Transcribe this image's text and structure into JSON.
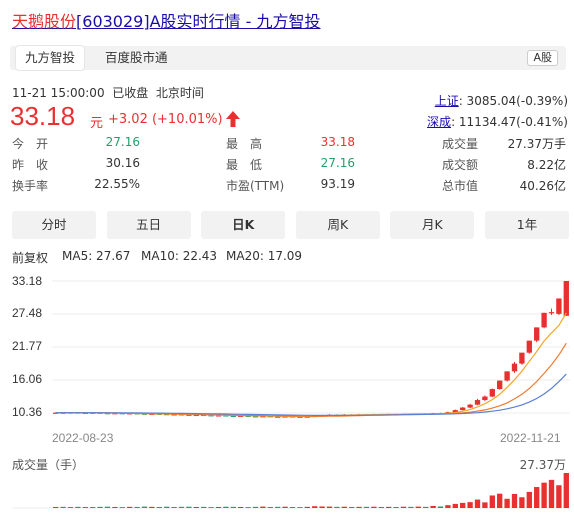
{
  "page": {
    "title_name": "天鹅股份",
    "title_code": "[603029]",
    "title_rest": "A股实时行情 - 九方智投"
  },
  "tabs": [
    {
      "label": "九方智投",
      "active": true
    },
    {
      "label": "百度股市通",
      "active": false
    }
  ],
  "market_badge": "A股",
  "quote": {
    "timestamp": "11-21 15:00:00",
    "status": "已收盘",
    "timezone": "北京时间",
    "price": "33.18",
    "unit": "元",
    "change": "+3.02 (+10.01%)"
  },
  "indices": [
    {
      "name": "上证",
      "value": ": 3085.04(-0.39%)"
    },
    {
      "name": "深成",
      "value": ": 11134.47(-0.41%)"
    }
  ],
  "stats": [
    {
      "label": "今　开",
      "value": "27.16",
      "color": "green"
    },
    {
      "label": "最　高",
      "value": "33.18",
      "color": "red"
    },
    {
      "label": "成交量",
      "value": "27.37万手",
      "color": "normal"
    },
    {
      "label": "昨　收",
      "value": "30.16",
      "color": "normal"
    },
    {
      "label": "最　低",
      "value": "27.16",
      "color": "green"
    },
    {
      "label": "成交额",
      "value": "8.22亿",
      "color": "normal"
    },
    {
      "label": "换手率",
      "value": "22.55%",
      "color": "normal"
    },
    {
      "label": "市盈(TTM)",
      "value": "93.19",
      "color": "normal"
    },
    {
      "label": "总市值",
      "value": "40.26亿",
      "color": "normal"
    }
  ],
  "periods": [
    {
      "label": "分时",
      "active": false
    },
    {
      "label": "五日",
      "active": false
    },
    {
      "label": "日K",
      "active": true
    },
    {
      "label": "周K",
      "active": false
    },
    {
      "label": "月K",
      "active": false
    },
    {
      "label": "1年",
      "active": false
    }
  ],
  "colors": {
    "up": "#e93030",
    "down": "#22a06b",
    "ma5": "#f5a623",
    "ma10": "#f07a32",
    "ma20": "#5b7fd6"
  },
  "chart_data": {
    "type": "candlestick",
    "adjust_label": "前复权",
    "ma_legend": [
      {
        "label": "MA5: 27.67",
        "color": "#f5a623"
      },
      {
        "label": "MA10: 22.43",
        "color": "#f07a32"
      },
      {
        "label": "MA20: 17.09",
        "color": "#5b7fd6"
      }
    ],
    "y_ticks": [
      "33.18",
      "27.48",
      "21.77",
      "16.06",
      "10.36"
    ],
    "y_tick_values": [
      33.18,
      27.48,
      21.77,
      16.06,
      10.36
    ],
    "x_labels": [
      "2022-08-23",
      "2022-11-21"
    ],
    "candles": [
      [
        10.4,
        10.42,
        10.3,
        10.48
      ],
      [
        10.42,
        10.38,
        10.32,
        10.5
      ],
      [
        10.38,
        10.45,
        10.33,
        10.52
      ],
      [
        10.45,
        10.4,
        10.35,
        10.5
      ],
      [
        10.4,
        10.36,
        10.3,
        10.45
      ],
      [
        10.36,
        10.42,
        10.32,
        10.48
      ],
      [
        10.42,
        10.35,
        10.28,
        10.46
      ],
      [
        10.35,
        10.3,
        10.24,
        10.4
      ],
      [
        10.3,
        10.34,
        10.26,
        10.4
      ],
      [
        10.34,
        10.28,
        10.22,
        10.38
      ],
      [
        10.28,
        10.32,
        10.24,
        10.38
      ],
      [
        10.32,
        10.25,
        10.18,
        10.36
      ],
      [
        10.25,
        10.2,
        10.12,
        10.3
      ],
      [
        10.2,
        10.24,
        10.14,
        10.3
      ],
      [
        10.24,
        10.18,
        10.1,
        10.28
      ],
      [
        10.18,
        10.1,
        10.02,
        10.22
      ],
      [
        10.1,
        10.14,
        10.04,
        10.2
      ],
      [
        10.14,
        10.06,
        9.98,
        10.18
      ],
      [
        10.06,
        10.0,
        9.92,
        10.1
      ],
      [
        10.0,
        10.04,
        9.94,
        10.1
      ],
      [
        10.04,
        9.98,
        9.9,
        10.08
      ],
      [
        9.98,
        9.92,
        9.84,
        10.02
      ],
      [
        9.92,
        9.96,
        9.86,
        10.02
      ],
      [
        9.96,
        9.88,
        9.8,
        10.0
      ],
      [
        9.88,
        9.84,
        9.76,
        9.94
      ],
      [
        9.84,
        9.88,
        9.78,
        9.94
      ],
      [
        9.88,
        9.8,
        9.72,
        9.92
      ],
      [
        9.8,
        9.76,
        9.68,
        9.86
      ],
      [
        9.76,
        9.82,
        9.7,
        9.88
      ],
      [
        9.82,
        9.74,
        9.66,
        9.86
      ],
      [
        9.74,
        9.7,
        9.62,
        9.8
      ],
      [
        9.7,
        9.78,
        9.64,
        9.84
      ],
      [
        9.78,
        9.72,
        9.64,
        9.82
      ],
      [
        9.72,
        9.66,
        9.58,
        9.76
      ],
      [
        9.66,
        9.74,
        9.6,
        9.8
      ],
      [
        9.74,
        9.86,
        9.7,
        9.92
      ],
      [
        9.86,
        9.94,
        9.8,
        10.02
      ],
      [
        9.94,
        10.06,
        9.88,
        10.14
      ],
      [
        10.06,
        10.0,
        9.94,
        10.12
      ],
      [
        10.0,
        10.1,
        9.96,
        10.18
      ],
      [
        10.1,
        10.04,
        9.98,
        10.16
      ],
      [
        10.04,
        10.12,
        10.0,
        10.2
      ],
      [
        10.12,
        10.08,
        10.02,
        10.18
      ],
      [
        10.08,
        10.16,
        10.04,
        10.22
      ],
      [
        10.16,
        10.1,
        10.04,
        10.2
      ],
      [
        10.1,
        10.18,
        10.06,
        10.24
      ],
      [
        10.18,
        10.14,
        10.08,
        10.24
      ],
      [
        10.14,
        10.22,
        10.1,
        10.28
      ],
      [
        10.22,
        10.16,
        10.1,
        10.26
      ],
      [
        10.16,
        10.24,
        10.12,
        10.3
      ],
      [
        10.24,
        10.2,
        10.14,
        10.3
      ],
      [
        10.2,
        10.32,
        10.16,
        10.38
      ],
      [
        10.32,
        10.28,
        10.2,
        10.4
      ],
      [
        10.28,
        10.5,
        10.24,
        10.6
      ],
      [
        10.5,
        10.86,
        10.44,
        10.96
      ],
      [
        10.86,
        11.3,
        10.8,
        11.4
      ],
      [
        11.3,
        11.8,
        11.2,
        11.96
      ],
      [
        11.8,
        12.6,
        11.7,
        12.8
      ],
      [
        12.6,
        13.2,
        12.4,
        13.4
      ],
      [
        13.2,
        14.5,
        13.1,
        14.6
      ],
      [
        14.5,
        15.96,
        14.4,
        15.96
      ],
      [
        15.96,
        17.56,
        15.8,
        17.56
      ],
      [
        17.56,
        18.9,
        17.3,
        19.2
      ],
      [
        18.9,
        20.79,
        18.7,
        20.79
      ],
      [
        20.79,
        22.87,
        20.6,
        22.87
      ],
      [
        22.87,
        25.16,
        22.6,
        25.16
      ],
      [
        25.16,
        27.68,
        25.0,
        27.68
      ],
      [
        27.68,
        27.8,
        27.3,
        28.4
      ],
      [
        27.5,
        30.16,
        27.3,
        30.16
      ],
      [
        27.16,
        33.18,
        27.16,
        33.18
      ]
    ],
    "ma5": [
      10.42,
      10.41,
      10.4,
      10.4,
      10.4,
      10.39,
      10.38,
      10.36,
      10.34,
      10.32,
      10.3,
      10.28,
      10.26,
      10.24,
      10.22,
      10.18,
      10.16,
      10.13,
      10.1,
      10.07,
      10.05,
      10.02,
      9.99,
      9.96,
      9.94,
      9.91,
      9.89,
      9.86,
      9.84,
      9.82,
      9.8,
      9.78,
      9.76,
      9.75,
      9.74,
      9.76,
      9.8,
      9.86,
      9.92,
      9.98,
      10.02,
      10.05,
      10.07,
      10.09,
      10.1,
      10.12,
      10.14,
      10.16,
      10.18,
      10.19,
      10.21,
      10.23,
      10.26,
      10.32,
      10.45,
      10.65,
      10.95,
      11.4,
      11.96,
      12.68,
      13.6,
      14.8,
      16.1,
      17.6,
      19.3,
      21.0,
      22.8,
      24.2,
      25.5,
      27.67
    ],
    "ma10": [
      10.42,
      10.42,
      10.41,
      10.41,
      10.4,
      10.4,
      10.39,
      10.38,
      10.37,
      10.35,
      10.34,
      10.32,
      10.3,
      10.28,
      10.26,
      10.24,
      10.21,
      10.19,
      10.16,
      10.14,
      10.11,
      10.08,
      10.06,
      10.03,
      10.0,
      9.98,
      9.95,
      9.93,
      9.9,
      9.88,
      9.86,
      9.84,
      9.82,
      9.8,
      9.79,
      9.78,
      9.79,
      9.8,
      9.82,
      9.85,
      9.88,
      9.91,
      9.95,
      9.98,
      10.01,
      10.04,
      10.07,
      10.09,
      10.11,
      10.13,
      10.15,
      10.17,
      10.19,
      10.23,
      10.29,
      10.38,
      10.5,
      10.68,
      10.9,
      11.2,
      11.6,
      12.1,
      12.8,
      13.6,
      14.6,
      15.8,
      17.2,
      18.7,
      20.4,
      22.43
    ],
    "ma20": [
      10.42,
      10.42,
      10.42,
      10.42,
      10.41,
      10.41,
      10.41,
      10.4,
      10.4,
      10.39,
      10.38,
      10.37,
      10.36,
      10.35,
      10.34,
      10.32,
      10.31,
      10.29,
      10.28,
      10.26,
      10.24,
      10.22,
      10.2,
      10.18,
      10.16,
      10.14,
      10.12,
      10.1,
      10.08,
      10.06,
      10.04,
      10.02,
      10.0,
      9.98,
      9.96,
      9.95,
      9.94,
      9.94,
      9.94,
      9.95,
      9.96,
      9.97,
      9.98,
      9.99,
      10.0,
      10.02,
      10.04,
      10.06,
      10.08,
      10.1,
      10.12,
      10.14,
      10.16,
      10.18,
      10.22,
      10.27,
      10.34,
      10.42,
      10.53,
      10.67,
      10.85,
      11.08,
      11.38,
      11.76,
      12.24,
      12.86,
      13.64,
      14.62,
      15.78,
      17.09
    ],
    "volume_label": "成交量（手）",
    "volume_max_label": "27.37万",
    "volume_max": 27.37,
    "volumes": [
      0.8,
      0.9,
      0.7,
      0.9,
      0.8,
      0.7,
      0.9,
      1.0,
      0.8,
      0.7,
      0.9,
      0.8,
      1.1,
      0.9,
      0.8,
      1.0,
      0.7,
      0.9,
      1.0,
      0.8,
      0.9,
      0.7,
      0.8,
      1.0,
      0.9,
      0.8,
      0.7,
      0.9,
      1.1,
      0.8,
      0.9,
      1.0,
      0.8,
      0.7,
      0.9,
      1.4,
      1.2,
      1.1,
      0.9,
      1.0,
      0.8,
      0.9,
      0.9,
      1.0,
      0.8,
      0.9,
      0.8,
      1.0,
      0.9,
      1.1,
      0.9,
      1.6,
      1.2,
      2.2,
      3.2,
      4.0,
      4.6,
      6.6,
      4.4,
      9.8,
      11.2,
      7.2,
      11.0,
      8.4,
      12.6,
      16.4,
      19.8,
      22.0,
      17.8,
      27.37
    ]
  }
}
